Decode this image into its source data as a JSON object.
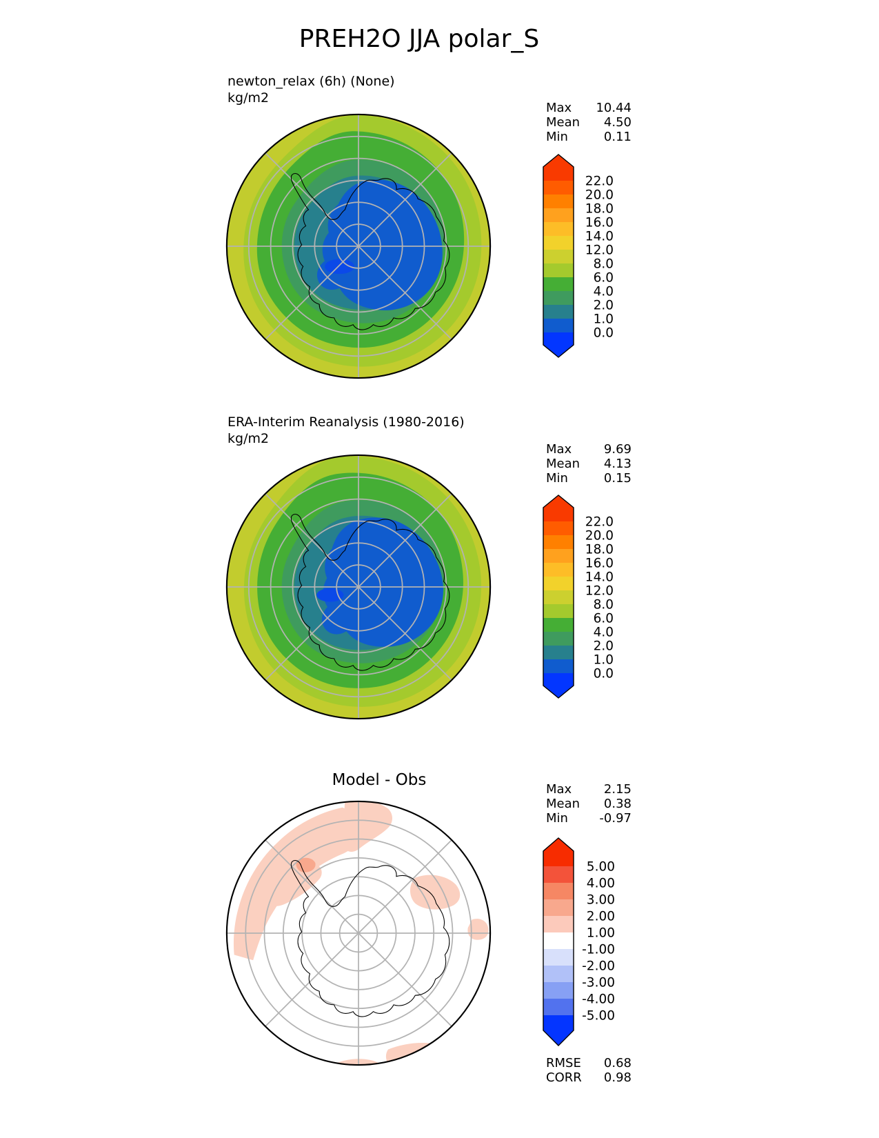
{
  "page_title": "PREH2O JJA polar_S",
  "graticule_color": "#b3b3b3",
  "coast_color": "#000000",
  "boundary_color": "#000000",
  "panels": {
    "model": {
      "name": "newton_relax (6h) (None)",
      "units": "kg/m2",
      "stats": [
        {
          "label": "Max",
          "value": "10.44"
        },
        {
          "label": "Mean",
          "value": "4.50"
        },
        {
          "label": "Min",
          "value": "0.11"
        }
      ],
      "colorbar": {
        "tick_labels": [
          "22.0",
          "20.0",
          "18.0",
          "16.0",
          "14.0",
          "12.0",
          "8.0",
          "6.0",
          "4.0",
          "2.0",
          "1.0",
          "0.0"
        ],
        "over_color": "#f93a00",
        "segment_colors": [
          "#ff5c00",
          "#ff8000",
          "#ffa11e",
          "#fdbd27",
          "#f2d22b",
          "#ccd02f",
          "#a4ca2d",
          "#45ae35",
          "#3f9b5e",
          "#27808d",
          "#105cce"
        ],
        "under_color": "#0336ff"
      },
      "map_palette": {
        "edge": "#c2cc2e",
        "outer": "#a4ca2d",
        "mid": "#45ae35",
        "inner": "#3f9b5e",
        "ring": "#27808d",
        "core": "#105cce",
        "core_low": "#0b49e8"
      }
    },
    "obs": {
      "name": "ERA-Interim Reanalysis (1980-2016)",
      "units": "kg/m2",
      "stats": [
        {
          "label": "Max",
          "value": "9.69"
        },
        {
          "label": "Mean",
          "value": "4.13"
        },
        {
          "label": "Min",
          "value": "0.15"
        }
      ],
      "colorbar": {
        "tick_labels": [
          "22.0",
          "20.0",
          "18.0",
          "16.0",
          "14.0",
          "12.0",
          "8.0",
          "6.0",
          "4.0",
          "2.0",
          "1.0",
          "0.0"
        ],
        "over_color": "#f93a00",
        "segment_colors": [
          "#ff5c00",
          "#ff8000",
          "#ffa11e",
          "#fdbd27",
          "#f2d22b",
          "#ccd02f",
          "#a4ca2d",
          "#45ae35",
          "#3f9b5e",
          "#27808d",
          "#105cce"
        ],
        "under_color": "#0336ff"
      },
      "map_palette": {
        "edge": "#c2cc2e",
        "outer": "#a4ca2d",
        "mid": "#45ae35",
        "inner": "#3f9b5e",
        "ring": "#27808d",
        "core": "#105cce",
        "core_low": "#0b49e8"
      }
    },
    "diff": {
      "title": "Model - Obs",
      "stats": [
        {
          "label": "Max",
          "value": "2.15"
        },
        {
          "label": "Mean",
          "value": "0.38"
        },
        {
          "label": "Min",
          "value": "-0.97"
        }
      ],
      "colorbar": {
        "tick_labels": [
          "5.00",
          "4.00",
          "3.00",
          "2.00",
          "1.00",
          "-1.00",
          "-2.00",
          "-3.00",
          "-4.00",
          "-5.00"
        ],
        "over_color": "#f72c00",
        "segment_colors": [
          "#f3533a",
          "#f68764",
          "#f8a88d",
          "#fccabb",
          "#ffffff",
          "#d8e0fb",
          "#b1c1f8",
          "#87a0f4",
          "#5272ee"
        ],
        "under_color": "#0435ff"
      },
      "map_palette": {
        "bg": "#ffffff",
        "anom_plus_1": "#fbd0c0",
        "anom_plus_2": "#f8a88d"
      },
      "metrics": [
        {
          "label": "RMSE",
          "value": "0.68"
        },
        {
          "label": "CORR",
          "value": "0.98"
        }
      ]
    }
  },
  "chart_data": [
    {
      "type": "heatmap",
      "subtype": "filled_contour_polar_map",
      "projection": "polar_stereographic_south",
      "variable": "PREH2O",
      "season": "JJA",
      "title": "newton_relax (6h) (None)",
      "units": "kg/m2",
      "stats": {
        "max": 10.44,
        "mean": 4.5,
        "min": 0.11
      },
      "contour_levels": [
        0.0,
        1.0,
        2.0,
        4.0,
        6.0,
        8.0,
        12.0,
        14.0,
        16.0,
        18.0,
        20.0,
        22.0
      ],
      "colorbar_tick_labels": [
        "22.0",
        "20.0",
        "18.0",
        "16.0",
        "14.0",
        "12.0",
        "8.0",
        "6.0",
        "4.0",
        "2.0",
        "1.0",
        "0.0"
      ],
      "legend_position": "right",
      "grid": "polar graticule, 5 latitude circles, 8 meridian spokes"
    },
    {
      "type": "heatmap",
      "subtype": "filled_contour_polar_map",
      "projection": "polar_stereographic_south",
      "variable": "PREH2O",
      "season": "JJA",
      "title": "ERA-Interim Reanalysis (1980-2016)",
      "units": "kg/m2",
      "stats": {
        "max": 9.69,
        "mean": 4.13,
        "min": 0.15
      },
      "contour_levels": [
        0.0,
        1.0,
        2.0,
        4.0,
        6.0,
        8.0,
        12.0,
        14.0,
        16.0,
        18.0,
        20.0,
        22.0
      ],
      "colorbar_tick_labels": [
        "22.0",
        "20.0",
        "18.0",
        "16.0",
        "14.0",
        "12.0",
        "8.0",
        "6.0",
        "4.0",
        "2.0",
        "1.0",
        "0.0"
      ],
      "legend_position": "right",
      "grid": "polar graticule, 5 latitude circles, 8 meridian spokes"
    },
    {
      "type": "heatmap",
      "subtype": "filled_contour_polar_map_difference",
      "projection": "polar_stereographic_south",
      "title": "Model - Obs",
      "stats": {
        "max": 2.15,
        "mean": 0.38,
        "min": -0.97
      },
      "contour_levels": [
        -5.0,
        -4.0,
        -3.0,
        -2.0,
        -1.0,
        1.0,
        2.0,
        3.0,
        4.0,
        5.0
      ],
      "colorbar_tick_labels": [
        "5.00",
        "4.00",
        "3.00",
        "2.00",
        "1.00",
        "-1.00",
        "-2.00",
        "-3.00",
        "-4.00",
        "-5.00"
      ],
      "metrics": {
        "RMSE": 0.68,
        "CORR": 0.98
      },
      "legend_position": "right",
      "grid": "polar graticule, 6 latitude circles, 8 meridian spokes"
    }
  ]
}
